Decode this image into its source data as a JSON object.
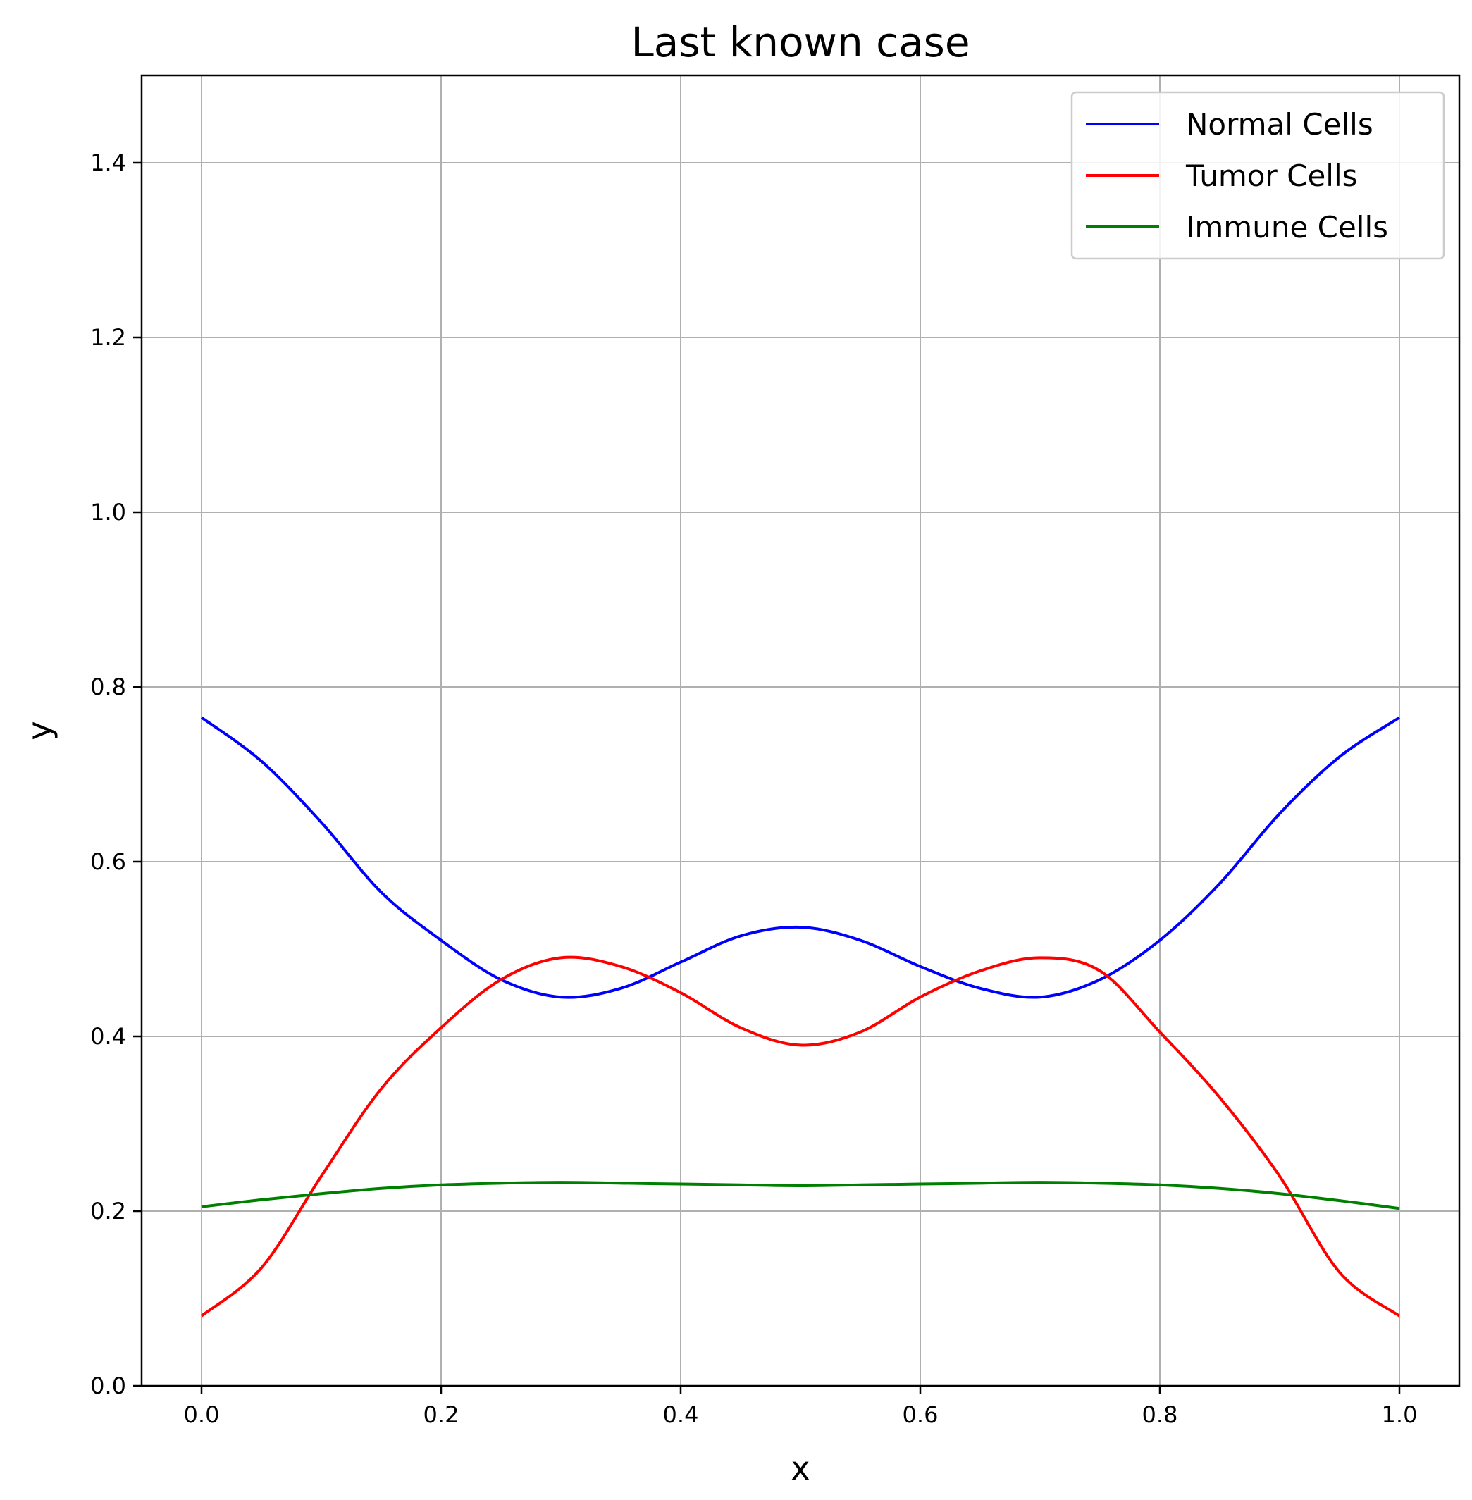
{
  "chart_data": {
    "type": "line",
    "title": "Last known case",
    "xlabel": "x",
    "ylabel": "y",
    "xlim": [
      -0.05,
      1.05
    ],
    "ylim": [
      0.0,
      1.5
    ],
    "xticks": [
      "0.0",
      "0.2",
      "0.4",
      "0.6",
      "0.8",
      "1.0"
    ],
    "yticks": [
      "0.0",
      "0.2",
      "0.4",
      "0.6",
      "0.8",
      "1.0",
      "1.2",
      "1.4"
    ],
    "grid": true,
    "legend_position": "top-right",
    "x": [
      0.0,
      0.05,
      0.1,
      0.15,
      0.2,
      0.25,
      0.3,
      0.35,
      0.4,
      0.45,
      0.5,
      0.55,
      0.6,
      0.65,
      0.7,
      0.75,
      0.8,
      0.85,
      0.9,
      0.95,
      1.0
    ],
    "series": [
      {
        "name": "Normal Cells",
        "color": "#0000ff",
        "values": [
          0.765,
          0.715,
          0.645,
          0.565,
          0.51,
          0.465,
          0.445,
          0.455,
          0.485,
          0.515,
          0.525,
          0.51,
          0.48,
          0.455,
          0.445,
          0.465,
          0.51,
          0.575,
          0.655,
          0.72,
          0.765
        ]
      },
      {
        "name": "Tumor Cells",
        "color": "#ff0000",
        "values": [
          0.08,
          0.135,
          0.24,
          0.34,
          0.41,
          0.465,
          0.49,
          0.48,
          0.45,
          0.41,
          0.39,
          0.405,
          0.445,
          0.475,
          0.49,
          0.475,
          0.405,
          0.33,
          0.24,
          0.13,
          0.08
        ]
      },
      {
        "name": "Immune Cells",
        "color": "#008000",
        "values": [
          0.205,
          0.213,
          0.22,
          0.226,
          0.23,
          0.232,
          0.233,
          0.232,
          0.231,
          0.23,
          0.229,
          0.23,
          0.231,
          0.232,
          0.233,
          0.232,
          0.23,
          0.226,
          0.22,
          0.212,
          0.203
        ]
      }
    ]
  }
}
